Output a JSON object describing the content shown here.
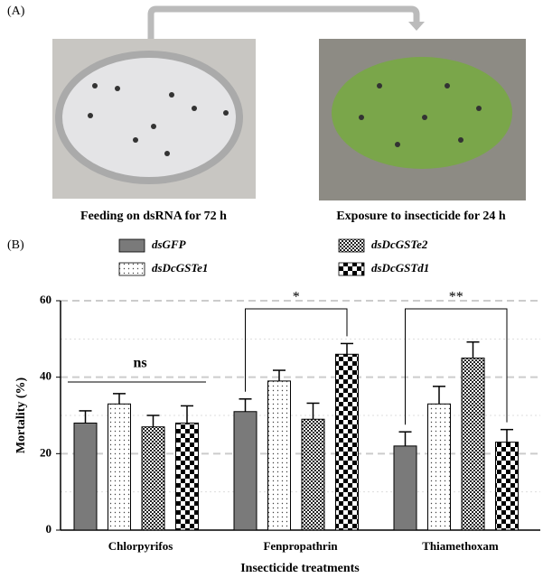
{
  "panel_a": {
    "label": "(A)",
    "left_caption": "Feeding on dsRNA for 72 h",
    "right_caption": "Exposure to insecticide for 24 h"
  },
  "chart_data": {
    "type": "bar",
    "panel_label": "(B)",
    "x_label": "Insecticide treatments",
    "y_label": "Mortality (%)",
    "categories": [
      "Chlorpyrifos",
      "Fenpropathrin",
      "Thiamethoxam"
    ],
    "series": [
      {
        "name": "dsGFP",
        "color": "#7a7a7a",
        "values": [
          28,
          31,
          22
        ],
        "errors": [
          3.2,
          3.3,
          3.7
        ]
      },
      {
        "name": "dsDcGSTe1",
        "color": "dots",
        "values": [
          33,
          39,
          33
        ],
        "errors": [
          2.7,
          2.8,
          4.6
        ]
      },
      {
        "name": "dsDcGSTe2",
        "color": "fine-checker",
        "values": [
          27,
          29,
          45
        ],
        "errors": [
          3,
          4.2,
          4.2
        ]
      },
      {
        "name": "dsDcGSTd1",
        "color": "coarse-checker",
        "values": [
          28,
          46,
          23
        ],
        "errors": [
          4.5,
          2.8,
          3.3
        ]
      }
    ],
    "annotations": [
      "ns",
      "*",
      "**"
    ],
    "ylim": [
      0,
      60
    ],
    "yticks": [
      0,
      20,
      40,
      60
    ],
    "minor_grid": [
      10,
      30,
      50
    ],
    "grid": true
  }
}
